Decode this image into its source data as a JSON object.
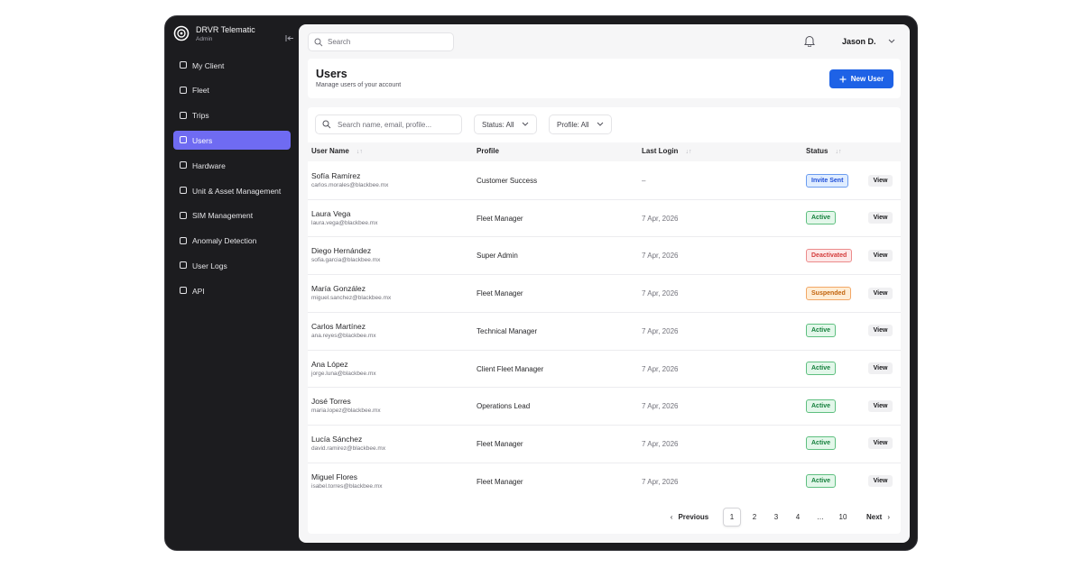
{
  "app": {
    "name": "DRVR Telematic",
    "role": "Admin"
  },
  "nav": [
    {
      "label": "My Client",
      "active": false
    },
    {
      "label": "Fleet",
      "active": false
    },
    {
      "label": "Trips",
      "active": false
    },
    {
      "label": "Users",
      "active": true
    },
    {
      "label": "Hardware",
      "active": false
    },
    {
      "label": "Unit & Asset Management",
      "active": false
    },
    {
      "label": "SIM Management",
      "active": false
    },
    {
      "label": "Anomaly Detection",
      "active": false
    },
    {
      "label": "User Logs",
      "active": false
    },
    {
      "label": "API",
      "active": false
    }
  ],
  "topbar": {
    "search_placeholder": "Search",
    "user": "Jason D."
  },
  "header": {
    "title": "Users",
    "subtitle": "Manage users of your account",
    "button": "New User"
  },
  "filters": {
    "search_placeholder": "Search name, email, profile...",
    "status": "Status: All",
    "profile": "Profile: All"
  },
  "table": {
    "columns": [
      "User Name",
      "Profile",
      "Last Login",
      "Status"
    ],
    "rows": [
      {
        "name": "Sofía Ramírez",
        "email": "carlos.morales@blackbee.mx",
        "profile": "Customer Success",
        "last_login": "–",
        "status": "Invite Sent",
        "tone": "blue",
        "action": "View"
      },
      {
        "name": "Laura Vega",
        "email": "laura.vega@blackbee.mx",
        "profile": "Fleet Manager",
        "last_login": "7 Apr, 2026",
        "status": "Active",
        "tone": "green",
        "action": "View"
      },
      {
        "name": "Diego Hernández",
        "email": "sofia.garcia@blackbee.mx",
        "profile": "Super Admin",
        "last_login": "7 Apr, 2026",
        "status": "Deactivated",
        "tone": "red",
        "action": "View"
      },
      {
        "name": "María González",
        "email": "miguel.sanchez@blackbee.mx",
        "profile": "Fleet Manager",
        "last_login": "7 Apr, 2026",
        "status": "Suspended",
        "tone": "orange",
        "action": "View"
      },
      {
        "name": "Carlos Martínez",
        "email": "ana.reyes@blackbee.mx",
        "profile": "Technical Manager",
        "last_login": "7 Apr, 2026",
        "status": "Active",
        "tone": "green",
        "action": "View"
      },
      {
        "name": "Ana López",
        "email": "jorge.luna@blackbee.mx",
        "profile": "Client Fleet Manager",
        "last_login": "7 Apr, 2026",
        "status": "Active",
        "tone": "green",
        "action": "View"
      },
      {
        "name": "José Torres",
        "email": "maria.lopez@blackbee.mx",
        "profile": "Operations Lead",
        "last_login": "7 Apr, 2026",
        "status": "Active",
        "tone": "green",
        "action": "View"
      },
      {
        "name": "Lucía Sánchez",
        "email": "david.ramirez@blackbee.mx",
        "profile": "Fleet Manager",
        "last_login": "7 Apr, 2026",
        "status": "Active",
        "tone": "green",
        "action": "View"
      },
      {
        "name": "Miguel Flores",
        "email": "isabel.torres@blackbee.mx",
        "profile": "Fleet Manager",
        "last_login": "7 Apr, 2026",
        "status": "Active",
        "tone": "green",
        "action": "View"
      }
    ]
  },
  "pagination": {
    "previous": "Previous",
    "pages": [
      "1",
      "2",
      "3",
      "4",
      "…",
      "10"
    ],
    "current": 0,
    "next": "Next"
  }
}
